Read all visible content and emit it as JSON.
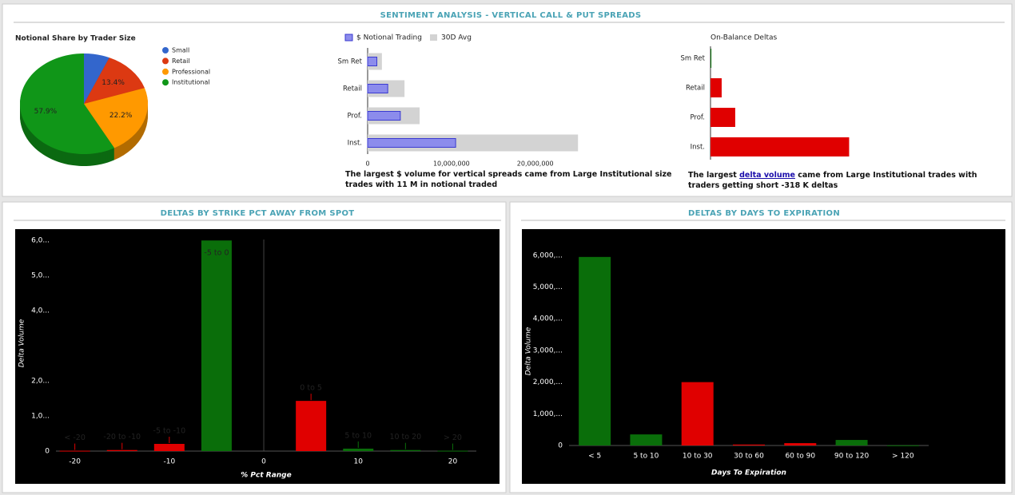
{
  "panels": [
    {
      "title": "SENTIMENT ANALYSIS - VERTICAL CALL & PUT SPREADS"
    },
    {
      "title": "DELTAS BY STRIKE PCT AWAY FROM SPOT"
    },
    {
      "title": "DELTAS BY DAYS TO EXPIRATION"
    }
  ],
  "captions": {
    "notional": "The largest $ volume for vertical spreads came from Large Institutional size trades with 11 M in notional traded",
    "deltas": [
      "The largest",
      "delta volume",
      "came from Large Institutional trades with traders getting short -318 K deltas"
    ]
  },
  "chart_data": [
    {
      "type": "pie",
      "title": "Notional Share by Trader Size",
      "categories": [
        "Small",
        "Retail",
        "Professional",
        "Institutional"
      ],
      "values": [
        6.5,
        13.4,
        22.2,
        57.9
      ],
      "value_labels": [
        null,
        "13.4%",
        "22.2%",
        "57.9%"
      ],
      "colors": [
        "#3366cc",
        "#dc3912",
        "#ff9900",
        "#109618"
      ],
      "legend": "right"
    },
    {
      "type": "bar",
      "orientation": "horizontal",
      "categories": [
        "Sm Ret",
        "Retail",
        "Prof.",
        "Inst."
      ],
      "series": [
        {
          "name": "$ Notional Trading",
          "color": "#8c8cec",
          "values": [
            1100000,
            2400000,
            3900000,
            10500000
          ]
        },
        {
          "name": "30D Avg",
          "color": "#d3d3d3",
          "values": [
            1700000,
            4400000,
            6200000,
            25100000
          ]
        }
      ],
      "xlim": [
        0,
        35000000
      ],
      "xticks": [
        0,
        {
          "value": 10000000,
          "label": "10,000,000"
        },
        {
          "value": 20000000,
          "label": "20,000,000"
        }
      ],
      "legend": "top"
    },
    {
      "type": "bar",
      "orientation": "horizontal",
      "title": "On-Balance Deltas",
      "categories": [
        "Sm Ret",
        "Retail",
        "Prof.",
        "Inst."
      ],
      "values": [
        2000,
        25600,
        56700,
        318000
      ],
      "colors": [
        "#0a6e0a",
        "#e00000",
        "#e00000",
        "#e00000"
      ],
      "xlim": [
        0,
        660000
      ]
    },
    {
      "type": "bar",
      "orientation": "vertical",
      "x": [
        -20,
        -15,
        -10,
        -5,
        5,
        10,
        15,
        20
      ],
      "values": [
        10,
        30,
        205,
        6000,
        1430,
        70,
        30,
        10
      ],
      "labels": [
        "< -20",
        "-20 to -10",
        "-5 to -10",
        "-5 to 0",
        "0 to 5",
        "5 to 10",
        "10 to 20",
        "> 20"
      ],
      "colors": [
        "#e00000",
        "#e00000",
        "#e00000",
        "#0a6e0a",
        "#e00000",
        "#0a6e0a",
        "#0a6e0a",
        "#0a6e0a"
      ],
      "xlim": [
        -22,
        22.5
      ],
      "xticks": [
        -20,
        -10,
        0,
        10,
        20
      ],
      "ylim": [
        0,
        6300
      ],
      "yticks": [
        0,
        {
          "value": 1000,
          "label": "1,0..."
        },
        {
          "value": 2000,
          "label": "2,0..."
        },
        {
          "value": 4000,
          "label": "4,0..."
        },
        {
          "value": 5000,
          "label": "5,0..."
        },
        {
          "value": 6000,
          "label": "6,0..."
        }
      ],
      "xlabel": "% Pct Range",
      "ylabel": "Delta Volume"
    },
    {
      "type": "bar",
      "orientation": "vertical",
      "categories": [
        "< 5",
        "5 to 10",
        "10 to 30",
        "30 to 60",
        "60 to 90",
        "90 to 120",
        "> 120"
      ],
      "values": [
        5950,
        350,
        2000,
        30,
        75,
        175,
        5
      ],
      "colors": [
        "#0a6e0a",
        "#0a6e0a",
        "#e00000",
        "#e00000",
        "#e00000",
        "#0a6e0a",
        "#0a6e0a"
      ],
      "ylim": [
        0,
        6500
      ],
      "yticks": [
        0,
        {
          "value": 1000,
          "label": "1,000,..."
        },
        {
          "value": 2000,
          "label": "2,000,..."
        },
        {
          "value": 3000,
          "label": "3,000,..."
        },
        {
          "value": 4000,
          "label": "4,000,..."
        },
        {
          "value": 5000,
          "label": "5,000,..."
        },
        {
          "value": 6000,
          "label": "6,000,..."
        }
      ],
      "xlabel": "Days To Expiration",
      "ylabel": "Delta Volume"
    }
  ]
}
